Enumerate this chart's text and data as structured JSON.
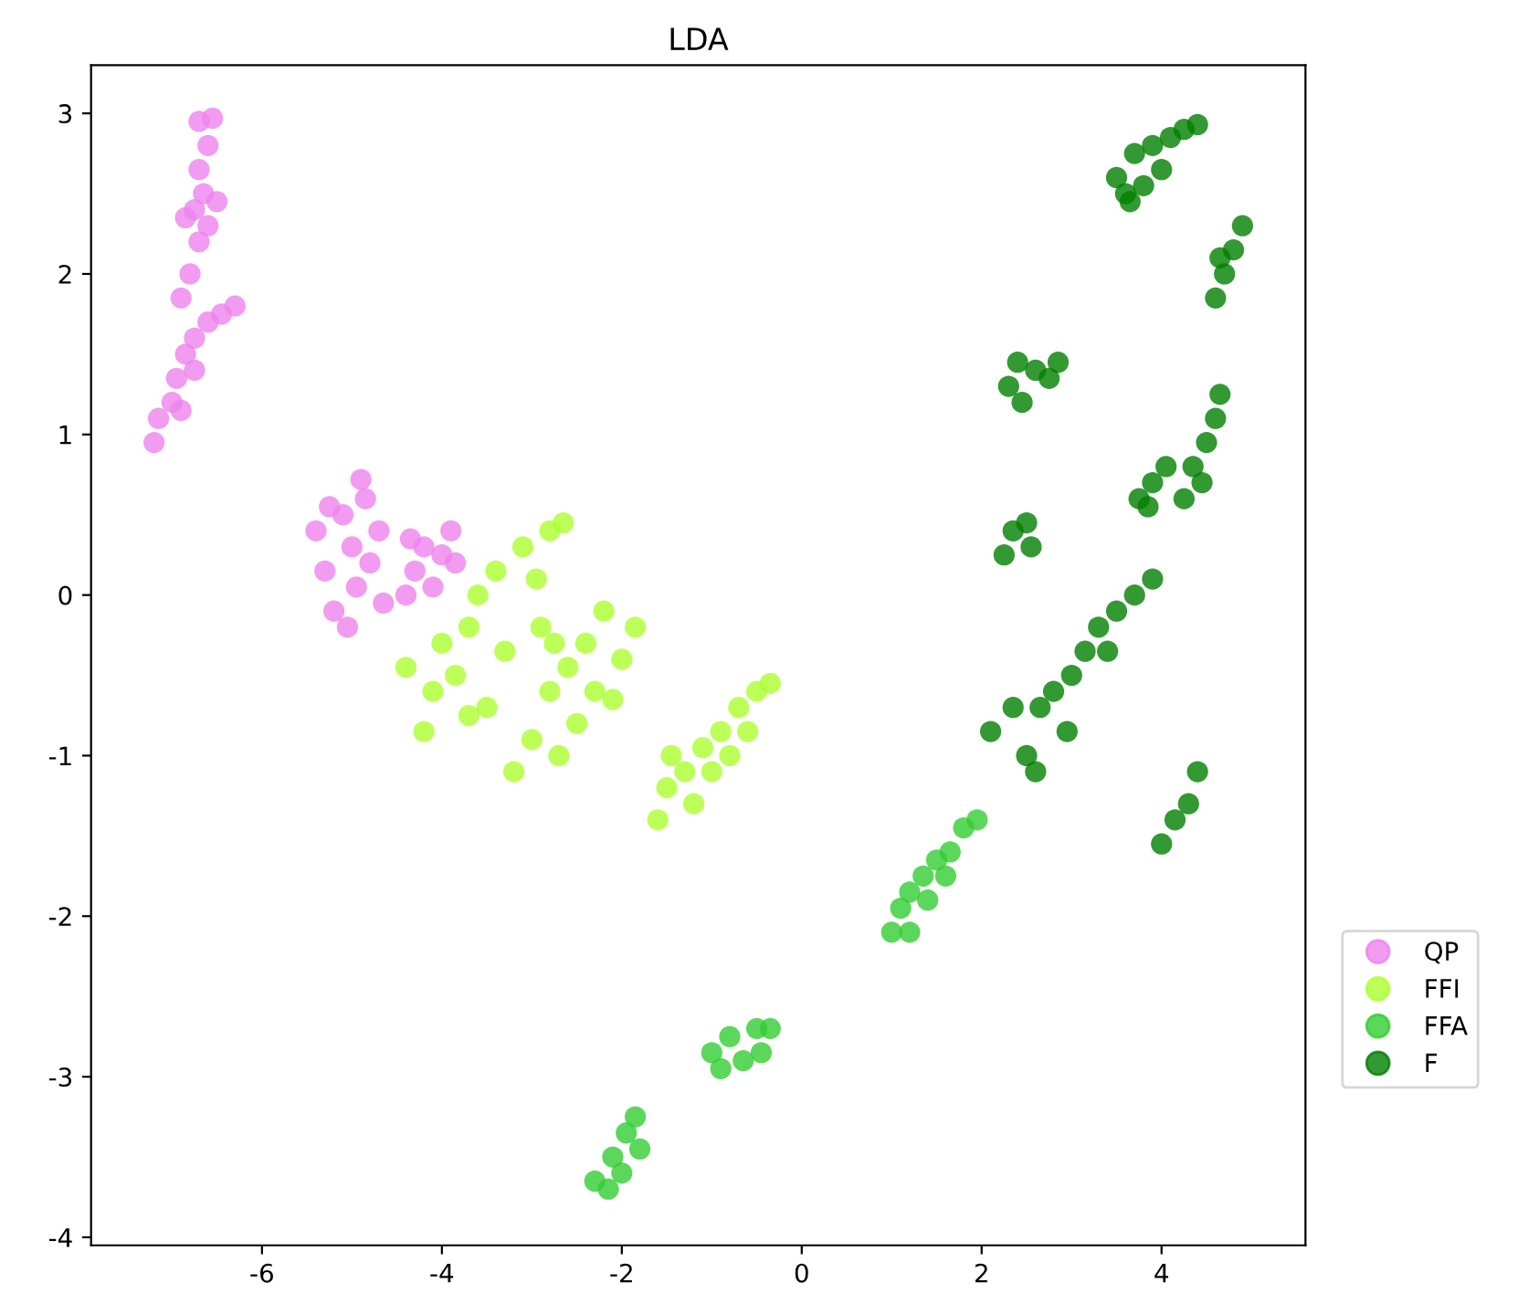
{
  "chart_data": {
    "type": "scatter",
    "title": "LDA",
    "xlim": [
      -7.9,
      5.6
    ],
    "ylim": [
      -4.05,
      3.3
    ],
    "xticks": [
      -6,
      -4,
      -2,
      0,
      2,
      4
    ],
    "yticks": [
      -4,
      -3,
      -2,
      -1,
      0,
      1,
      2,
      3
    ],
    "grid": false,
    "legend": "right",
    "marker": "circle",
    "series": [
      {
        "name": "QP",
        "color": "#ee82ee",
        "x": [
          -7.2,
          -7.15,
          -7.0,
          -6.95,
          -6.85,
          -6.75,
          -6.6,
          -6.45,
          -6.3,
          -6.9,
          -6.75,
          -6.9,
          -6.8,
          -6.7,
          -6.75,
          -6.65,
          -6.85,
          -6.7,
          -6.6,
          -6.55,
          -6.7,
          -6.5,
          -6.6,
          -5.4,
          -5.3,
          -5.2,
          -5.1,
          -5.0,
          -4.95,
          -4.85,
          -4.8,
          -4.7,
          -4.65,
          -4.9,
          -5.25,
          -5.05,
          -4.4,
          -4.3,
          -4.2,
          -4.1,
          -4.0,
          -3.9,
          -3.85,
          -4.35
        ],
        "values": [
          0.95,
          1.1,
          1.2,
          1.35,
          1.5,
          1.6,
          1.7,
          1.75,
          1.8,
          1.15,
          1.4,
          1.85,
          2.0,
          2.2,
          2.4,
          2.5,
          2.35,
          2.65,
          2.8,
          2.97,
          2.95,
          2.45,
          2.3,
          0.4,
          0.15,
          -0.1,
          0.5,
          0.3,
          0.05,
          0.6,
          0.2,
          0.4,
          -0.05,
          0.72,
          0.55,
          -0.2,
          0.0,
          0.15,
          0.3,
          0.05,
          0.25,
          0.4,
          0.2,
          0.35
        ]
      },
      {
        "name": "FFI",
        "color": "#adff2f",
        "x": [
          -4.2,
          -4.1,
          -4.0,
          -3.85,
          -3.7,
          -3.6,
          -3.5,
          -3.4,
          -3.3,
          -3.1,
          -2.95,
          -2.8,
          -2.65,
          -2.9,
          -3.7,
          -4.4,
          -3.2,
          -3.0,
          -2.8,
          -2.6,
          -2.4,
          -2.2,
          -2.7,
          -2.5,
          -2.3,
          -2.0,
          -1.85,
          -2.1,
          -2.75,
          -1.6,
          -1.5,
          -1.3,
          -1.1,
          -0.9,
          -0.7,
          -0.5,
          -0.35,
          -1.2,
          -1.0,
          -0.8,
          -0.6,
          -1.45
        ],
        "values": [
          -0.85,
          -0.6,
          -0.3,
          -0.5,
          -0.2,
          0.0,
          -0.7,
          0.15,
          -0.35,
          0.3,
          0.1,
          0.4,
          0.45,
          -0.2,
          -0.75,
          -0.45,
          -1.1,
          -0.9,
          -0.6,
          -0.45,
          -0.3,
          -0.1,
          -1.0,
          -0.8,
          -0.6,
          -0.4,
          -0.2,
          -0.65,
          -0.3,
          -1.4,
          -1.2,
          -1.1,
          -0.95,
          -0.85,
          -0.7,
          -0.6,
          -0.55,
          -1.3,
          -1.1,
          -1.0,
          -0.85,
          -1.0
        ]
      },
      {
        "name": "FFA",
        "color": "#32cd32",
        "x": [
          1.0,
          1.1,
          1.2,
          1.35,
          1.5,
          1.65,
          1.8,
          1.95,
          1.2,
          1.4,
          1.6,
          -1.0,
          -0.9,
          -0.8,
          -0.65,
          -0.5,
          -0.35,
          -0.45,
          -2.3,
          -2.15,
          -2.1,
          -2.0,
          -1.95,
          -1.85,
          -1.8
        ],
        "values": [
          -2.1,
          -1.95,
          -1.85,
          -1.75,
          -1.65,
          -1.6,
          -1.45,
          -1.4,
          -2.1,
          -1.9,
          -1.75,
          -2.85,
          -2.95,
          -2.75,
          -2.9,
          -2.7,
          -2.7,
          -2.85,
          -3.65,
          -3.7,
          -3.5,
          -3.6,
          -3.35,
          -3.25,
          -3.45
        ]
      },
      {
        "name": "F",
        "color": "#008000",
        "x": [
          3.5,
          3.6,
          3.7,
          3.8,
          3.9,
          4.0,
          4.1,
          4.25,
          4.4,
          3.65,
          4.6,
          4.7,
          4.8,
          4.9,
          4.65,
          2.3,
          2.45,
          2.6,
          2.75,
          2.85,
          2.4,
          3.75,
          3.9,
          4.05,
          3.85,
          4.25,
          4.35,
          4.5,
          4.6,
          4.65,
          4.45,
          2.25,
          2.35,
          2.5,
          2.55,
          3.0,
          3.15,
          3.3,
          3.5,
          3.7,
          3.9,
          3.4,
          2.1,
          2.35,
          2.5,
          2.65,
          2.8,
          2.95,
          2.6,
          4.0,
          4.15,
          4.3,
          4.4
        ],
        "values": [
          2.6,
          2.5,
          2.75,
          2.55,
          2.8,
          2.65,
          2.85,
          2.9,
          2.93,
          2.45,
          1.85,
          2.0,
          2.15,
          2.3,
          2.1,
          1.3,
          1.2,
          1.4,
          1.35,
          1.45,
          1.45,
          0.6,
          0.7,
          0.8,
          0.55,
          0.6,
          0.8,
          0.95,
          1.1,
          1.25,
          0.7,
          0.25,
          0.4,
          0.45,
          0.3,
          -0.5,
          -0.35,
          -0.2,
          -0.1,
          0.0,
          0.1,
          -0.35,
          -0.85,
          -0.7,
          -1.0,
          -0.7,
          -0.6,
          -0.85,
          -1.1,
          -1.55,
          -1.4,
          -1.3,
          -1.1
        ]
      }
    ]
  }
}
